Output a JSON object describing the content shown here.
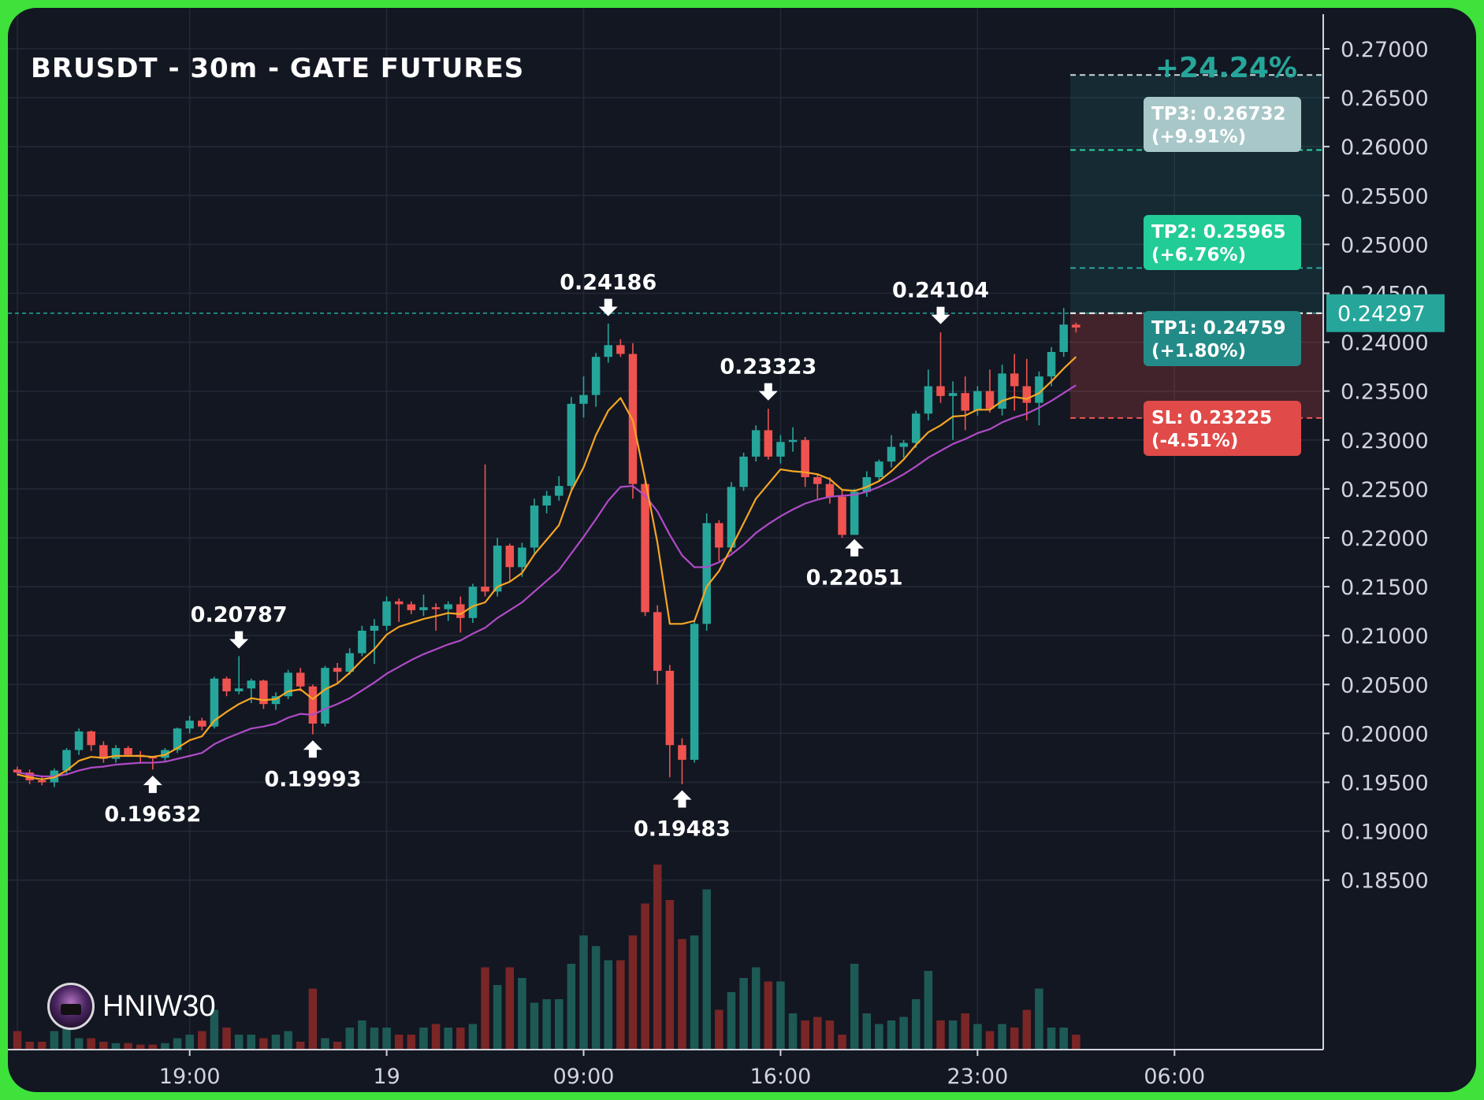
{
  "title": "BRUSDT - 30m - GATE FUTURES",
  "author": {
    "name": "HNIW30",
    "avatar_icon": "trader-avatar-icon"
  },
  "colors": {
    "frame": "#3ee23a",
    "background": "#131722",
    "grid": "#242936",
    "up": "#26a69a",
    "down": "#ef5350",
    "ema_fast": "#f5a623",
    "ema_slow": "#b04bc7",
    "volume_up": "#1e5a55",
    "volume_down": "#7a2626",
    "axis_text": "#d1d4dc",
    "tp3_label": "#a8c7c8",
    "tp2_label": "#22cc96",
    "tp1_label": "#238b87",
    "sl_label": "#e04a48",
    "price_tag": "#26a69a",
    "total_gain": "#26a69a"
  },
  "chart_data": {
    "type": "candlestick",
    "title": "BRUSDT - 30m - GATE FUTURES",
    "xlabel": "",
    "ylabel": "",
    "ylim": [
      0.1845,
      0.2735
    ],
    "grid": true,
    "y_ticks": [
      "0.27000",
      "0.26500",
      "0.26000",
      "0.25500",
      "0.25000",
      "0.24500",
      "0.24000",
      "0.23500",
      "0.23000",
      "0.22500",
      "0.22000",
      "0.21500",
      "0.21000",
      "0.20500",
      "0.20000",
      "0.19500",
      "0.19000",
      "0.18500"
    ],
    "x_ticks": [
      {
        "label": "",
        "index": 0
      },
      {
        "label": "19:00",
        "index": 14
      },
      {
        "label": "19",
        "index": 30
      },
      {
        "label": "09:00",
        "index": 46
      },
      {
        "label": "16:00",
        "index": 62
      },
      {
        "label": "23:00",
        "index": 78
      },
      {
        "label": "06:00",
        "index": 94
      }
    ],
    "ohlc": [
      [
        0.1963,
        0.1966,
        0.1957,
        0.196
      ],
      [
        0.196,
        0.1963,
        0.1948,
        0.1952
      ],
      [
        0.1952,
        0.1956,
        0.1947,
        0.195
      ],
      [
        0.195,
        0.1964,
        0.1945,
        0.1962
      ],
      [
        0.1962,
        0.1985,
        0.1958,
        0.1983
      ],
      [
        0.1983,
        0.2005,
        0.1978,
        0.2002
      ],
      [
        0.2002,
        0.2003,
        0.1982,
        0.1988
      ],
      [
        0.1988,
        0.1992,
        0.197,
        0.1974
      ],
      [
        0.1974,
        0.1988,
        0.197,
        0.1985
      ],
      [
        0.1985,
        0.1987,
        0.1976,
        0.1978
      ],
      [
        0.1978,
        0.1982,
        0.1969,
        0.1976
      ],
      [
        0.1976,
        0.1977,
        0.1963,
        0.1975
      ],
      [
        0.1975,
        0.1985,
        0.1972,
        0.1983
      ],
      [
        0.1983,
        0.2006,
        0.198,
        0.2005
      ],
      [
        0.2005,
        0.2018,
        0.2,
        0.2013
      ],
      [
        0.2013,
        0.2016,
        0.2003,
        0.2007
      ],
      [
        0.2007,
        0.2058,
        0.2005,
        0.2056
      ],
      [
        0.2056,
        0.2058,
        0.2038,
        0.2043
      ],
      [
        0.2043,
        0.2079,
        0.204,
        0.2046
      ],
      [
        0.2046,
        0.2056,
        0.2031,
        0.2054
      ],
      [
        0.2054,
        0.2055,
        0.2025,
        0.203
      ],
      [
        0.203,
        0.2042,
        0.2024,
        0.2038
      ],
      [
        0.2038,
        0.2065,
        0.2035,
        0.2062
      ],
      [
        0.2062,
        0.2067,
        0.2043,
        0.2048
      ],
      [
        0.2048,
        0.205,
        0.1999,
        0.201
      ],
      [
        0.201,
        0.2069,
        0.2007,
        0.2067
      ],
      [
        0.2067,
        0.2072,
        0.2052,
        0.2063
      ],
      [
        0.2063,
        0.2087,
        0.206,
        0.2082
      ],
      [
        0.2082,
        0.211,
        0.2079,
        0.2105
      ],
      [
        0.2105,
        0.2117,
        0.2071,
        0.211
      ],
      [
        0.211,
        0.214,
        0.2105,
        0.2135
      ],
      [
        0.2135,
        0.2138,
        0.2114,
        0.2132
      ],
      [
        0.2132,
        0.2135,
        0.2122,
        0.2126
      ],
      [
        0.2126,
        0.2142,
        0.212,
        0.2129
      ],
      [
        0.2129,
        0.2133,
        0.2105,
        0.2127
      ],
      [
        0.2127,
        0.2135,
        0.2115,
        0.2132
      ],
      [
        0.2132,
        0.214,
        0.2103,
        0.2118
      ],
      [
        0.2118,
        0.2153,
        0.2113,
        0.215
      ],
      [
        0.215,
        0.2275,
        0.214,
        0.2145
      ],
      [
        0.2145,
        0.22,
        0.214,
        0.2192
      ],
      [
        0.2192,
        0.2194,
        0.2155,
        0.217
      ],
      [
        0.217,
        0.2195,
        0.216,
        0.219
      ],
      [
        0.219,
        0.224,
        0.2183,
        0.2233
      ],
      [
        0.2233,
        0.2248,
        0.2225,
        0.2243
      ],
      [
        0.2243,
        0.2263,
        0.2238,
        0.2253
      ],
      [
        0.2253,
        0.2344,
        0.2248,
        0.2337
      ],
      [
        0.2337,
        0.2365,
        0.2323,
        0.2346
      ],
      [
        0.2346,
        0.2389,
        0.2334,
        0.2385
      ],
      [
        0.2385,
        0.2419,
        0.2379,
        0.2397
      ],
      [
        0.2397,
        0.2403,
        0.2385,
        0.2388
      ],
      [
        0.2388,
        0.2399,
        0.224,
        0.2255
      ],
      [
        0.2255,
        0.226,
        0.212,
        0.2124
      ],
      [
        0.2124,
        0.2131,
        0.205,
        0.2064
      ],
      [
        0.2064,
        0.207,
        0.1955,
        0.1988
      ],
      [
        0.1988,
        0.1995,
        0.1948,
        0.1973
      ],
      [
        0.1973,
        0.2115,
        0.197,
        0.2112
      ],
      [
        0.2112,
        0.2225,
        0.2105,
        0.2215
      ],
      [
        0.2215,
        0.2218,
        0.2176,
        0.219
      ],
      [
        0.219,
        0.2257,
        0.2185,
        0.2252
      ],
      [
        0.2252,
        0.2287,
        0.2248,
        0.2283
      ],
      [
        0.2283,
        0.2315,
        0.2278,
        0.231
      ],
      [
        0.231,
        0.2332,
        0.228,
        0.2283
      ],
      [
        0.2283,
        0.2305,
        0.2276,
        0.2298
      ],
      [
        0.2298,
        0.2313,
        0.2288,
        0.23
      ],
      [
        0.23,
        0.2303,
        0.2252,
        0.2262
      ],
      [
        0.2262,
        0.2266,
        0.224,
        0.2255
      ],
      [
        0.2255,
        0.2262,
        0.2235,
        0.2242
      ],
      [
        0.2242,
        0.225,
        0.22,
        0.2203
      ],
      [
        0.2203,
        0.225,
        0.2205,
        0.2247
      ],
      [
        0.2247,
        0.2268,
        0.2242,
        0.2262
      ],
      [
        0.2262,
        0.228,
        0.2258,
        0.2278
      ],
      [
        0.2278,
        0.2305,
        0.2272,
        0.2293
      ],
      [
        0.2293,
        0.23,
        0.2282,
        0.2297
      ],
      [
        0.2297,
        0.233,
        0.2292,
        0.2327
      ],
      [
        0.2327,
        0.2372,
        0.232,
        0.2355
      ],
      [
        0.2355,
        0.241,
        0.2338,
        0.2345
      ],
      [
        0.2345,
        0.236,
        0.23,
        0.2348
      ],
      [
        0.2348,
        0.2365,
        0.231,
        0.233
      ],
      [
        0.233,
        0.2355,
        0.2325,
        0.235
      ],
      [
        0.235,
        0.2372,
        0.2328,
        0.2332
      ],
      [
        0.2332,
        0.2377,
        0.2325,
        0.2368
      ],
      [
        0.2368,
        0.2388,
        0.233,
        0.2355
      ],
      [
        0.2355,
        0.2383,
        0.232,
        0.2338
      ],
      [
        0.2338,
        0.237,
        0.2315,
        0.2365
      ],
      [
        0.2365,
        0.2395,
        0.2355,
        0.239
      ],
      [
        0.239,
        0.2435,
        0.2385,
        0.2418
      ],
      [
        0.2418,
        0.242,
        0.241,
        0.2415
      ]
    ],
    "ema_fast": [
      0.1958,
      0.1955,
      0.1953,
      0.1955,
      0.1962,
      0.1972,
      0.1976,
      0.1975,
      0.1977,
      0.1977,
      0.1977,
      0.1976,
      0.1978,
      0.1985,
      0.1993,
      0.1997,
      0.2013,
      0.2022,
      0.203,
      0.2036,
      0.2034,
      0.2035,
      0.2043,
      0.2045,
      0.2035,
      0.2045,
      0.2051,
      0.2062,
      0.2075,
      0.2086,
      0.2101,
      0.2109,
      0.2113,
      0.2117,
      0.212,
      0.2123,
      0.2122,
      0.213,
      0.2134,
      0.215,
      0.2155,
      0.2164,
      0.2183,
      0.2198,
      0.2213,
      0.2248,
      0.2272,
      0.2305,
      0.233,
      0.2343,
      0.232,
      0.226,
      0.2195,
      0.2112,
      0.2112,
      0.2115,
      0.215,
      0.2166,
      0.219,
      0.2215,
      0.224,
      0.2255,
      0.227,
      0.2268,
      0.2267,
      0.2265,
      0.226,
      0.2249,
      0.2248,
      0.2252,
      0.2258,
      0.2268,
      0.228,
      0.2295,
      0.2308,
      0.2315,
      0.2324,
      0.2325,
      0.2331,
      0.2331,
      0.234,
      0.2344,
      0.2342,
      0.2348,
      0.236,
      0.2373,
      0.2385
    ],
    "ema_slow": [
      0.196,
      0.1958,
      0.1956,
      0.1956,
      0.1958,
      0.1962,
      0.1965,
      0.1966,
      0.1968,
      0.1969,
      0.197,
      0.197,
      0.1971,
      0.1974,
      0.1977,
      0.198,
      0.1989,
      0.1995,
      0.2,
      0.2005,
      0.2007,
      0.201,
      0.2016,
      0.202,
      0.2019,
      0.2025,
      0.203,
      0.2036,
      0.2044,
      0.2052,
      0.2061,
      0.2068,
      0.2075,
      0.2081,
      0.2086,
      0.2091,
      0.2095,
      0.2102,
      0.2108,
      0.2118,
      0.2126,
      0.2134,
      0.2145,
      0.2156,
      0.2167,
      0.2184,
      0.2201,
      0.2219,
      0.2238,
      0.2252,
      0.2253,
      0.2243,
      0.2227,
      0.2203,
      0.2182,
      0.217,
      0.217,
      0.2175,
      0.2183,
      0.2193,
      0.2205,
      0.2214,
      0.2222,
      0.2229,
      0.2235,
      0.2239,
      0.2242,
      0.2243,
      0.2244,
      0.2247,
      0.2252,
      0.2258,
      0.2265,
      0.2273,
      0.2282,
      0.2289,
      0.2296,
      0.2301,
      0.2307,
      0.2311,
      0.2318,
      0.2323,
      0.2327,
      0.2333,
      0.234,
      0.2348,
      0.2356
    ],
    "volume": [
      0.25,
      0.1,
      0.1,
      0.25,
      0.3,
      0.15,
      0.15,
      0.1,
      0.08,
      0.08,
      0.06,
      0.06,
      0.08,
      0.15,
      0.2,
      0.25,
      0.55,
      0.3,
      0.2,
      0.2,
      0.15,
      0.2,
      0.25,
      0.1,
      0.85,
      0.15,
      0.1,
      0.3,
      0.4,
      0.3,
      0.3,
      0.2,
      0.2,
      0.3,
      0.35,
      0.3,
      0.3,
      0.35,
      1.15,
      0.9,
      1.15,
      1.0,
      0.65,
      0.7,
      0.7,
      1.2,
      1.6,
      1.45,
      1.25,
      1.25,
      1.6,
      2.05,
      2.6,
      2.1,
      1.55,
      1.6,
      2.25,
      0.55,
      0.8,
      1.0,
      1.15,
      0.95,
      0.95,
      0.5,
      0.4,
      0.45,
      0.4,
      0.2,
      1.2,
      0.5,
      0.35,
      0.4,
      0.45,
      0.7,
      1.1,
      0.4,
      0.4,
      0.5,
      0.35,
      0.25,
      0.35,
      0.3,
      0.55,
      0.85,
      0.3,
      0.3,
      0.2
    ],
    "annotations": [
      {
        "label": "0.19632",
        "index": 11,
        "price": 0.19632,
        "dir": "up"
      },
      {
        "label": "0.20787",
        "index": 18,
        "price": 0.20787,
        "dir": "down"
      },
      {
        "label": "0.19993",
        "index": 24,
        "price": 0.19993,
        "dir": "up"
      },
      {
        "label": "0.24186",
        "index": 48,
        "price": 0.24186,
        "dir": "down"
      },
      {
        "label": "0.19483",
        "index": 54,
        "price": 0.19483,
        "dir": "up"
      },
      {
        "label": "0.23323",
        "index": 61,
        "price": 0.23323,
        "dir": "down"
      },
      {
        "label": "0.22051",
        "index": 68,
        "price": 0.22051,
        "dir": "up"
      },
      {
        "label": "0.24104",
        "index": 75,
        "price": 0.24104,
        "dir": "down"
      }
    ],
    "position": {
      "entry": 0.24297,
      "entry_label": "0.24297",
      "total_gain": "+24.24%",
      "tp3": {
        "price": 0.26732,
        "label": "TP3: 0.26732",
        "pct": "(+9.91%)"
      },
      "tp2": {
        "price": 0.25965,
        "label": "TP2: 0.25965",
        "pct": "(+6.76%)"
      },
      "tp1": {
        "price": 0.24759,
        "label": "TP1: 0.24759",
        "pct": "(+1.80%)"
      },
      "sl": {
        "price": 0.23225,
        "label": "SL: 0.23225",
        "pct": "(-4.51%)"
      }
    }
  }
}
